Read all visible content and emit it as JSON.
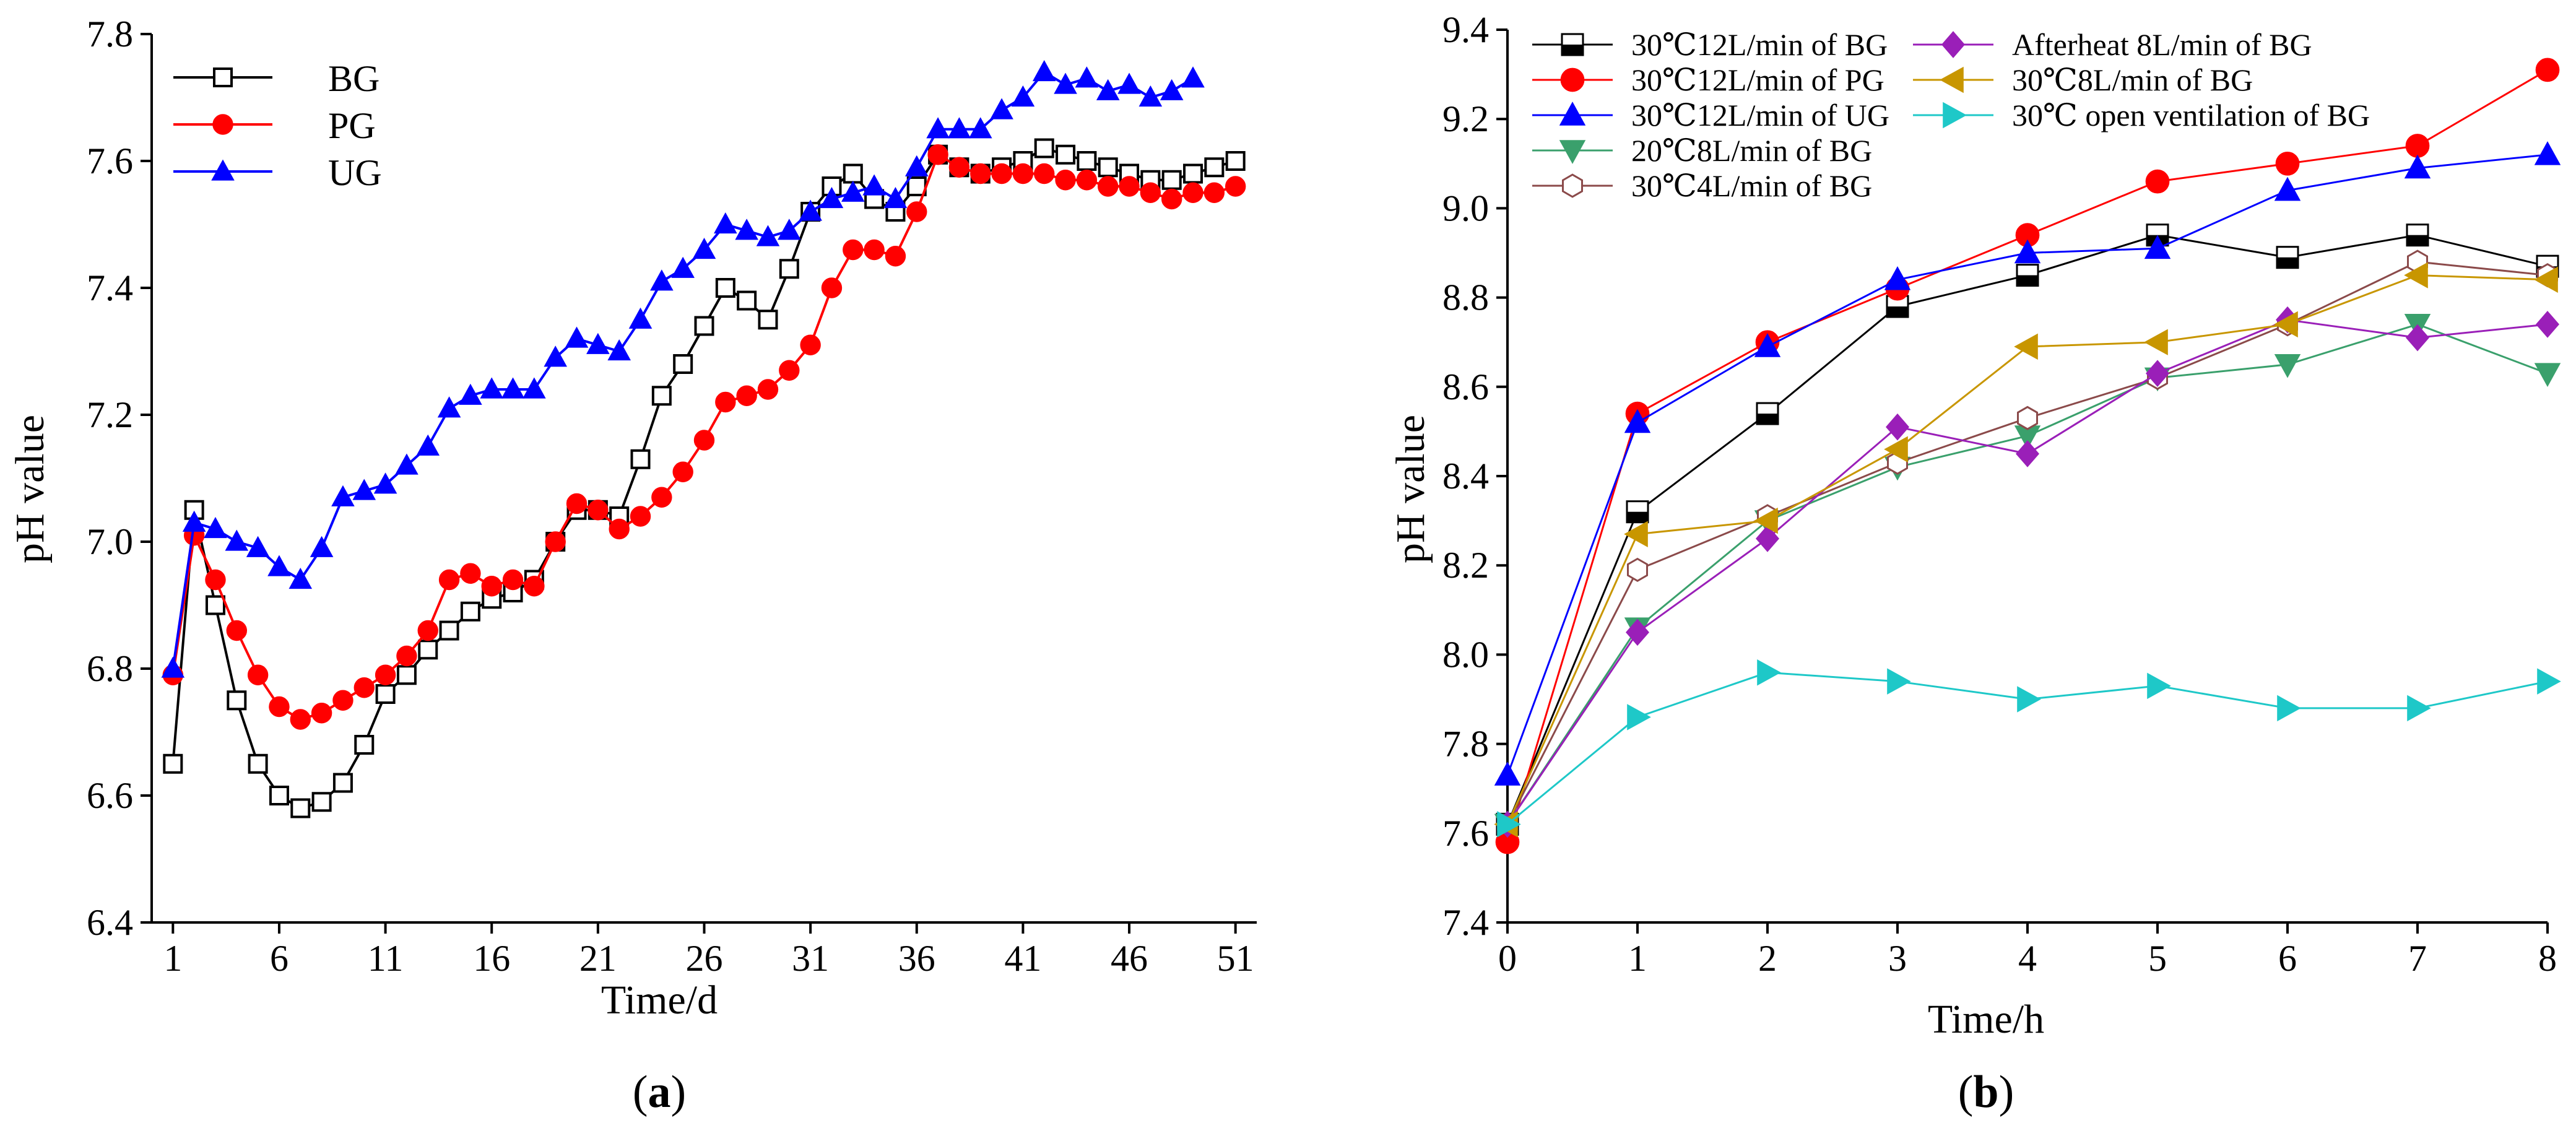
{
  "chart_data": [
    {
      "type": "line",
      "panel_label": [
        "(",
        "a",
        ")"
      ],
      "title": "",
      "xlabel": "Time/d",
      "ylabel": "pH value",
      "xlim": [
        0,
        52
      ],
      "ylim": [
        6.4,
        7.8
      ],
      "xticks": [
        1,
        6,
        11,
        16,
        21,
        26,
        31,
        36,
        41,
        46,
        51
      ],
      "yticks": [
        "6.4",
        "6.6",
        "6.8",
        "7.0",
        "7.2",
        "7.4",
        "7.6",
        "7.8"
      ],
      "legend_position": "top-left",
      "series": [
        {
          "name": "BG",
          "color": "#000000",
          "marker": "square",
          "marker_fill": "#ffffff",
          "x": [
            1,
            2,
            3,
            4,
            5,
            6,
            7,
            8,
            9,
            10,
            11,
            12,
            13,
            14,
            15,
            16,
            17,
            18,
            19,
            20,
            21,
            22,
            23,
            24,
            25,
            26,
            27,
            28,
            29,
            30,
            31,
            32,
            33,
            34,
            35,
            36,
            37,
            38,
            39,
            40,
            41,
            42,
            43,
            44,
            45,
            46,
            47,
            48,
            49,
            50,
            51
          ],
          "values": [
            6.65,
            7.05,
            6.9,
            6.75,
            6.65,
            6.6,
            6.58,
            6.59,
            6.62,
            6.68,
            6.76,
            6.79,
            6.83,
            6.86,
            6.89,
            6.91,
            6.92,
            6.94,
            7.0,
            7.05,
            7.05,
            7.04,
            7.13,
            7.23,
            7.28,
            7.34,
            7.4,
            7.38,
            7.35,
            7.43,
            7.52,
            7.56,
            7.58,
            7.54,
            7.52,
            7.56,
            7.61,
            7.59,
            7.58,
            7.59,
            7.6,
            7.62,
            7.61,
            7.6,
            7.59,
            7.58,
            7.57,
            7.57,
            7.58,
            7.59,
            7.6
          ]
        },
        {
          "name": "PG",
          "color": "#ff0000",
          "marker": "circle",
          "marker_fill": "#ff0000",
          "x": [
            1,
            2,
            3,
            4,
            5,
            6,
            7,
            8,
            9,
            10,
            11,
            12,
            13,
            14,
            15,
            16,
            17,
            18,
            19,
            20,
            21,
            22,
            23,
            24,
            25,
            26,
            27,
            28,
            29,
            30,
            31,
            32,
            33,
            34,
            35,
            36,
            37,
            38,
            39,
            40,
            41,
            42,
            43,
            44,
            45,
            46,
            47,
            48,
            49,
            50,
            51
          ],
          "values": [
            6.79,
            7.01,
            6.94,
            6.86,
            6.79,
            6.74,
            6.72,
            6.73,
            6.75,
            6.77,
            6.79,
            6.82,
            6.86,
            6.94,
            6.95,
            6.93,
            6.94,
            6.93,
            7.0,
            7.06,
            7.05,
            7.02,
            7.04,
            7.07,
            7.11,
            7.16,
            7.22,
            7.23,
            7.24,
            7.27,
            7.31,
            7.4,
            7.46,
            7.46,
            7.45,
            7.52,
            7.61,
            7.59,
            7.58,
            7.58,
            7.58,
            7.58,
            7.57,
            7.57,
            7.56,
            7.56,
            7.55,
            7.54,
            7.55,
            7.55,
            7.56
          ]
        },
        {
          "name": "UG",
          "color": "#0000ff",
          "marker": "triangle-up",
          "marker_fill": "#0000ff",
          "x": [
            1,
            2,
            3,
            4,
            5,
            6,
            7,
            8,
            9,
            10,
            11,
            12,
            13,
            14,
            15,
            16,
            17,
            18,
            19,
            20,
            21,
            22,
            23,
            24,
            25,
            26,
            27,
            28,
            29,
            30,
            31,
            32,
            33,
            34,
            35,
            36,
            37,
            38,
            39,
            40,
            41,
            42,
            43,
            44,
            45,
            46,
            47,
            48,
            49
          ],
          "values": [
            6.8,
            7.03,
            7.02,
            7.0,
            6.99,
            6.96,
            6.94,
            6.99,
            7.07,
            7.08,
            7.09,
            7.12,
            7.15,
            7.21,
            7.23,
            7.24,
            7.24,
            7.24,
            7.29,
            7.32,
            7.31,
            7.3,
            7.35,
            7.41,
            7.43,
            7.46,
            7.5,
            7.49,
            7.48,
            7.49,
            7.52,
            7.54,
            7.55,
            7.56,
            7.54,
            7.59,
            7.65,
            7.65,
            7.65,
            7.68,
            7.7,
            7.74,
            7.72,
            7.73,
            7.71,
            7.72,
            7.7,
            7.71,
            7.73
          ]
        }
      ]
    },
    {
      "type": "line",
      "panel_label": [
        "(",
        "b",
        ")"
      ],
      "title": "",
      "xlabel": "Time/h",
      "ylabel": "pH value",
      "xlim": [
        0,
        8
      ],
      "ylim": [
        7.4,
        9.4
      ],
      "xticks": [
        0,
        1,
        2,
        3,
        4,
        5,
        6,
        7,
        8
      ],
      "yticks": [
        "7.4",
        "7.6",
        "7.8",
        "8.0",
        "8.2",
        "8.4",
        "8.6",
        "8.8",
        "9.0",
        "9.2",
        "9.4"
      ],
      "legend_position": "top-left",
      "categories": [
        0,
        1,
        2,
        3,
        4,
        5,
        6,
        7,
        8
      ],
      "series": [
        {
          "name": "30℃12L/min of BG",
          "color": "#000000",
          "marker": "square-half",
          "marker_fill": "#000000",
          "values": [
            7.62,
            8.32,
            8.54,
            8.78,
            8.85,
            8.94,
            8.89,
            8.94,
            8.87
          ]
        },
        {
          "name": "30℃12L/min of PG",
          "color": "#ff0000",
          "marker": "circle",
          "marker_fill": "#ff0000",
          "values": [
            7.58,
            8.54,
            8.7,
            8.82,
            8.94,
            9.06,
            9.1,
            9.14,
            9.31
          ]
        },
        {
          "name": "30℃12L/min of UG",
          "color": "#0000ff",
          "marker": "triangle-up",
          "marker_fill": "#0000ff",
          "values": [
            7.73,
            8.52,
            8.69,
            8.84,
            8.9,
            8.91,
            9.04,
            9.09,
            9.12
          ]
        },
        {
          "name": "20℃8L/min of BG",
          "color": "#3aa06c",
          "marker": "triangle-down",
          "marker_fill": "#3aa06c",
          "values": [
            7.62,
            8.06,
            8.3,
            8.42,
            8.49,
            8.62,
            8.65,
            8.74,
            8.63
          ]
        },
        {
          "name": "30℃4L/min of BG",
          "color": "#8b4a4a",
          "marker": "hexagon",
          "marker_fill": "#ffffff",
          "values": [
            7.62,
            8.19,
            8.31,
            8.43,
            8.53,
            8.62,
            8.74,
            8.88,
            8.85
          ]
        },
        {
          "name": "Afterheat 8L/min of BG",
          "color": "#9a1fb8",
          "marker": "diamond",
          "marker_fill": "#9a1fb8",
          "values": [
            7.62,
            8.05,
            8.26,
            8.51,
            8.45,
            8.63,
            8.75,
            8.71,
            8.74
          ]
        },
        {
          "name": "30℃8L/min of BG",
          "color": "#c89600",
          "marker": "triangle-left",
          "marker_fill": "#c89600",
          "values": [
            7.62,
            8.27,
            8.3,
            8.46,
            8.69,
            8.7,
            8.74,
            8.85,
            8.84
          ]
        },
        {
          "name": "30℃ open ventilation of BG",
          "color": "#1ec8c8",
          "marker": "triangle-right",
          "marker_fill": "#1ec8c8",
          "values": [
            7.62,
            7.86,
            7.96,
            7.94,
            7.9,
            7.93,
            7.88,
            7.88,
            7.94
          ]
        }
      ]
    }
  ]
}
